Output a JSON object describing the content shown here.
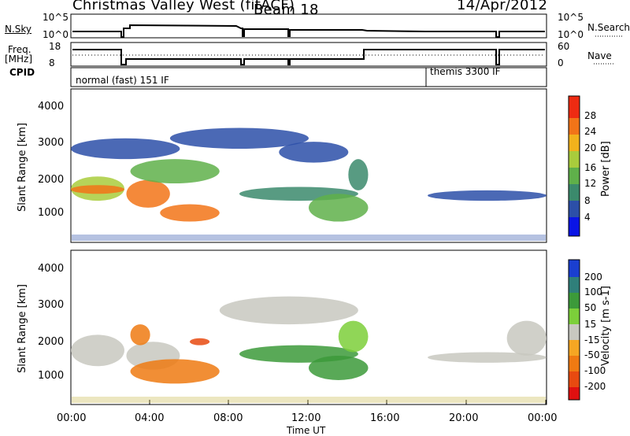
{
  "header": {
    "title": "Christmas Valley West (fitACF)",
    "beam": "Beam 18",
    "date": "14/Apr/2012"
  },
  "strip_nsky": {
    "left_label": "N.Sky",
    "right_label": "N.Search",
    "left_ticks": [
      "10^5",
      "10^0"
    ],
    "right_ticks": [
      "10^5",
      "10^0"
    ]
  },
  "strip_freq": {
    "left_label_1": "Freq.",
    "left_label_2": "[MHz]",
    "right_label": "Nave",
    "left_ticks": [
      "18",
      "8"
    ],
    "right_ticks": [
      "60",
      "0"
    ]
  },
  "cpid": {
    "label": "CPID",
    "segments": [
      {
        "name": "normal (fast) 151 IF",
        "start_hour": 0,
        "end_hour": 18
      },
      {
        "name": "themis 3300 IF",
        "start_hour": 18,
        "end_hour": 24
      }
    ]
  },
  "x_axis": {
    "label": "Time UT",
    "ticks": [
      "00:00",
      "04:00",
      "08:00",
      "12:00",
      "16:00",
      "20:00",
      "00:00"
    ],
    "range_hours": [
      0,
      24
    ]
  },
  "power_panel": {
    "ylabel": "Slant Range [km]",
    "yticks": [
      "4000",
      "3000",
      "2000",
      "1000"
    ],
    "ylim": [
      200,
      4600
    ],
    "colorbar_label": "Power [dB]",
    "colorbar_ticks": [
      "28",
      "24",
      "20",
      "16",
      "12",
      "8",
      "4"
    ],
    "colors": [
      "#0a14e6",
      "#2c4fa8",
      "#3b8a6c",
      "#5fb04a",
      "#a9cc3c",
      "#f2b21c",
      "#f27418",
      "#ee2b12"
    ]
  },
  "velocity_panel": {
    "ylabel": "Slant Range [km]",
    "yticks": [
      "4000",
      "3000",
      "2000",
      "1000"
    ],
    "ylim": [
      200,
      4600
    ],
    "colorbar_label": "Velocity [m s-1]",
    "colorbar_ticks": [
      "200",
      "100",
      "50",
      "15",
      "-15",
      "-50",
      "-100",
      "-200"
    ],
    "colors": [
      "#1a3fd0",
      "#2f7f7a",
      "#3c9a3a",
      "#7ccf3a",
      "#c8c8c0",
      "#f5a623",
      "#ef7a12",
      "#e84a10",
      "#e01010"
    ]
  },
  "chart_data": [
    {
      "type": "heatmap",
      "title": "Power [dB]",
      "xlabel": "Time UT",
      "ylabel": "Slant Range [km]",
      "x_range_hours": [
        0,
        24
      ],
      "ylim": [
        200,
        4600
      ],
      "regions": [
        {
          "t0": 0.0,
          "t1": 2.7,
          "r0": 1400,
          "r1": 2100,
          "power": 16
        },
        {
          "t0": 0.0,
          "t1": 2.7,
          "r0": 1600,
          "r1": 1850,
          "power": 24
        },
        {
          "t0": 2.8,
          "t1": 5.0,
          "r0": 1200,
          "r1": 2000,
          "power": 26
        },
        {
          "t0": 4.5,
          "t1": 7.5,
          "r0": 800,
          "r1": 1300,
          "power": 26
        },
        {
          "t0": 3.0,
          "t1": 7.5,
          "r0": 1900,
          "r1": 2600,
          "power": 12
        },
        {
          "t0": 0.0,
          "t1": 5.5,
          "r0": 2600,
          "r1": 3200,
          "power": 6
        },
        {
          "t0": 5.0,
          "t1": 12.0,
          "r0": 2900,
          "r1": 3500,
          "power": 6
        },
        {
          "t0": 8.5,
          "t1": 14.5,
          "r0": 1400,
          "r1": 1800,
          "power": 8
        },
        {
          "t0": 10.5,
          "t1": 14.0,
          "r0": 2500,
          "r1": 3100,
          "power": 6
        },
        {
          "t0": 12.0,
          "t1": 15.0,
          "r0": 800,
          "r1": 1600,
          "power": 14
        },
        {
          "t0": 14.0,
          "t1": 15.0,
          "r0": 1700,
          "r1": 2600,
          "power": 10
        },
        {
          "t0": 18.0,
          "t1": 24.0,
          "r0": 1400,
          "r1": 1700,
          "power": 6
        }
      ]
    },
    {
      "type": "heatmap",
      "title": "Velocity [m s-1]",
      "xlabel": "Time UT",
      "ylabel": "Slant Range [km]",
      "x_range_hours": [
        0,
        24
      ],
      "ylim": [
        200,
        4600
      ],
      "regions": [
        {
          "t0": 0.0,
          "t1": 2.7,
          "r0": 1300,
          "r1": 2200,
          "velocity": 0
        },
        {
          "t0": 2.8,
          "t1": 5.5,
          "r0": 1200,
          "r1": 2000,
          "velocity": 0
        },
        {
          "t0": 3.0,
          "t1": 7.5,
          "r0": 800,
          "r1": 1500,
          "velocity": -60
        },
        {
          "t0": 3.0,
          "t1": 4.0,
          "r0": 1900,
          "r1": 2500,
          "velocity": -80
        },
        {
          "t0": 6.0,
          "t1": 7.0,
          "r0": 1900,
          "r1": 2100,
          "velocity": -150
        },
        {
          "t0": 7.5,
          "t1": 14.5,
          "r0": 2500,
          "r1": 3300,
          "velocity": 10
        },
        {
          "t0": 8.5,
          "t1": 14.5,
          "r0": 1400,
          "r1": 1900,
          "velocity": 40
        },
        {
          "t0": 12.0,
          "t1": 15.0,
          "r0": 900,
          "r1": 1600,
          "velocity": 40
        },
        {
          "t0": 13.5,
          "t1": 15.0,
          "r0": 1700,
          "r1": 2600,
          "velocity": 20
        },
        {
          "t0": 18.0,
          "t1": 24.0,
          "r0": 1400,
          "r1": 1700,
          "velocity": 0
        },
        {
          "t0": 22.0,
          "t1": 24.0,
          "r0": 1600,
          "r1": 2600,
          "velocity": 0
        }
      ]
    }
  ]
}
